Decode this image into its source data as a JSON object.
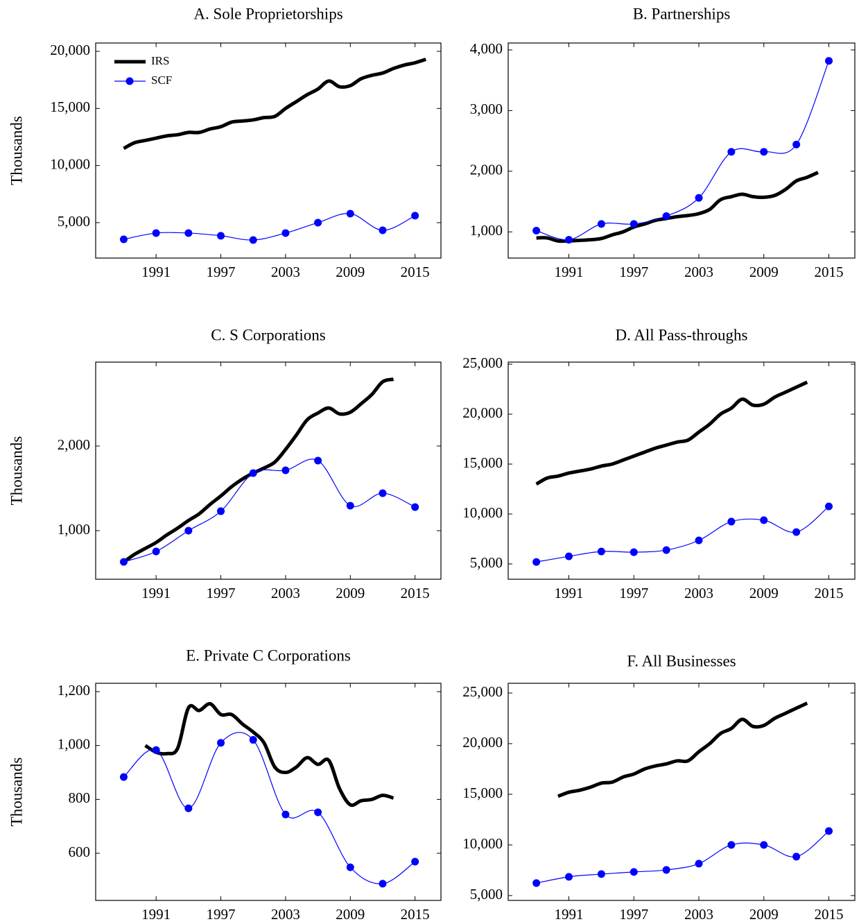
{
  "chart_data": [
    {
      "type": "line",
      "title": "A. Sole Proprietorships",
      "ylabel": "Thousands",
      "legend": "upper left",
      "xlim": [
        1985.4,
        2017.4
      ],
      "ylim": [
        1900,
        20730
      ],
      "xticks": [
        1991,
        1997,
        2003,
        2009,
        2015
      ],
      "yticks": [
        {
          "value": 5000,
          "label": "5,000"
        },
        {
          "value": 10000,
          "label": "10,000"
        },
        {
          "value": 15000,
          "label": "15,000"
        },
        {
          "value": 20000,
          "label": "20,000"
        }
      ],
      "series": [
        {
          "name": "IRS",
          "color": "#000000",
          "marker": false,
          "x": [
            1988,
            1989,
            1990,
            1991,
            1992,
            1993,
            1994,
            1995,
            1996,
            1997,
            1998,
            1999,
            2000,
            2001,
            2002,
            2003,
            2004,
            2005,
            2006,
            2007,
            2008,
            2009,
            2010,
            2011,
            2012,
            2013,
            2014,
            2015,
            2016
          ],
          "values": [
            11500,
            12000,
            12200,
            12400,
            12600,
            12700,
            12900,
            12900,
            13200,
            13400,
            13800,
            13900,
            14000,
            14200,
            14300,
            15000,
            15600,
            16200,
            16700,
            17400,
            16900,
            17000,
            17600,
            17900,
            18100,
            18500,
            18800,
            19000,
            19300
          ]
        },
        {
          "name": "SCF",
          "color": "#0000ff",
          "marker": true,
          "x": [
            1988,
            1991,
            1994,
            1997,
            2000,
            2003,
            2006,
            2009,
            2012,
            2015
          ],
          "values": [
            3540,
            4090,
            4090,
            3850,
            3480,
            4090,
            5000,
            5790,
            4330,
            5610
          ]
        }
      ]
    },
    {
      "type": "line",
      "title": "B. Partnerships",
      "xlim": [
        1985.4,
        2017.4
      ],
      "ylim": [
        568,
        4114
      ],
      "xticks": [
        1991,
        1997,
        2003,
        2009,
        2015
      ],
      "yticks": [
        {
          "value": 1000,
          "label": "1,000"
        },
        {
          "value": 2000,
          "label": "2,000"
        },
        {
          "value": 3000,
          "label": "3,000"
        },
        {
          "value": 4000,
          "label": "4,000"
        }
      ],
      "series": [
        {
          "color": "#000000",
          "marker": false,
          "x": [
            1988,
            1989,
            1990,
            1991,
            1992,
            1993,
            1994,
            1995,
            1996,
            1997,
            1998,
            1999,
            2000,
            2001,
            2002,
            2003,
            2004,
            2005,
            2006,
            2007,
            2008,
            2009,
            2010,
            2011,
            2012,
            2013,
            2014
          ],
          "values": [
            900,
            900,
            850,
            850,
            860,
            870,
            890,
            950,
            1000,
            1080,
            1130,
            1190,
            1220,
            1250,
            1270,
            1300,
            1370,
            1530,
            1580,
            1620,
            1580,
            1570,
            1600,
            1700,
            1840,
            1900,
            1980
          ]
        },
        {
          "color": "#0000ff",
          "marker": true,
          "x": [
            1988,
            1991,
            1994,
            1997,
            2000,
            2003,
            2006,
            2009,
            2012,
            2015
          ],
          "values": [
            1020,
            870,
            1130,
            1130,
            1260,
            1560,
            2320,
            2320,
            2440,
            3820
          ]
        }
      ]
    },
    {
      "type": "line",
      "title": "C. S Corporations",
      "ylabel": "Thousands",
      "xlim": [
        1985.4,
        2017.4
      ],
      "ylim": [
        426,
        2992
      ],
      "xticks": [
        1991,
        1997,
        2003,
        2009,
        2015
      ],
      "yticks": [
        {
          "value": 1000,
          "label": "1,000"
        },
        {
          "value": 2000,
          "label": "2,000"
        }
      ],
      "series": [
        {
          "color": "#000000",
          "marker": false,
          "x": [
            1988,
            1989,
            1990,
            1991,
            1992,
            1993,
            1994,
            1995,
            1996,
            1997,
            1998,
            1999,
            2000,
            2001,
            2002,
            2003,
            2004,
            2005,
            2006,
            2007,
            2008,
            2009,
            2010,
            2011,
            2012,
            2013
          ],
          "values": [
            630,
            720,
            790,
            860,
            950,
            1030,
            1120,
            1200,
            1310,
            1410,
            1520,
            1610,
            1680,
            1740,
            1810,
            1960,
            2130,
            2310,
            2390,
            2450,
            2380,
            2400,
            2500,
            2610,
            2760,
            2790
          ]
        },
        {
          "color": "#0000ff",
          "marker": true,
          "x": [
            1988,
            1991,
            1994,
            1997,
            2000,
            2003,
            2006,
            2009,
            2012,
            2015
          ],
          "values": [
            631,
            754,
            1000,
            1230,
            1680,
            1713,
            1828,
            1295,
            1443,
            1279
          ]
        }
      ]
    },
    {
      "type": "line",
      "title": "D. All Pass-throughs",
      "xlim": [
        1985.4,
        2017.4
      ],
      "ylim": [
        3470,
        25210
      ],
      "xticks": [
        1991,
        1997,
        2003,
        2009,
        2015
      ],
      "yticks": [
        {
          "value": 5000,
          "label": "5,000"
        },
        {
          "value": 10000,
          "label": "10,000"
        },
        {
          "value": 15000,
          "label": "15,000"
        },
        {
          "value": 20000,
          "label": "20,000"
        },
        {
          "value": 25000,
          "label": "25,000"
        }
      ],
      "series": [
        {
          "color": "#000000",
          "marker": false,
          "x": [
            1988,
            1989,
            1990,
            1991,
            1992,
            1993,
            1994,
            1995,
            1996,
            1997,
            1998,
            1999,
            2000,
            2001,
            2002,
            2003,
            2004,
            2005,
            2006,
            2007,
            2008,
            2009,
            2010,
            2011,
            2012,
            2013
          ],
          "values": [
            13000,
            13600,
            13800,
            14100,
            14300,
            14500,
            14800,
            15000,
            15400,
            15800,
            16200,
            16600,
            16900,
            17200,
            17400,
            18200,
            19000,
            20000,
            20600,
            21500,
            20900,
            21000,
            21700,
            22200,
            22700,
            23200
          ]
        },
        {
          "color": "#0000ff",
          "marker": true,
          "x": [
            1988,
            1991,
            1994,
            1997,
            2000,
            2003,
            2006,
            2009,
            2012,
            2015
          ],
          "values": [
            5200,
            5760,
            6250,
            6180,
            6390,
            7360,
            9240,
            9380,
            8190,
            10760
          ]
        }
      ]
    },
    {
      "type": "line",
      "title": "E. Private C Corporations",
      "ylabel": "Thousands",
      "xlim": [
        1985.4,
        2017.4
      ],
      "ylim": [
        425,
        1231
      ],
      "xticks": [
        1991,
        1997,
        2003,
        2009,
        2015
      ],
      "yticks": [
        600,
        800,
        {
          "value": 1000,
          "label": "1,000"
        },
        {
          "value": 1200,
          "label": "1,200"
        }
      ],
      "series": [
        {
          "color": "#000000",
          "marker": false,
          "x": [
            1990,
            1991,
            1992,
            1993,
            1994,
            1995,
            1996,
            1997,
            1998,
            1999,
            2000,
            2001,
            2002,
            2003,
            2004,
            2005,
            2006,
            2007,
            2008,
            2009,
            2010,
            2011,
            2012,
            2013
          ],
          "values": [
            1000,
            975,
            970,
            990,
            1140,
            1130,
            1155,
            1115,
            1115,
            1080,
            1050,
            1010,
            920,
            900,
            920,
            955,
            930,
            945,
            840,
            780,
            795,
            800,
            815,
            805
          ]
        },
        {
          "color": "#0000ff",
          "marker": true,
          "x": [
            1988,
            1991,
            1994,
            1997,
            2000,
            2003,
            2006,
            2009,
            2012,
            2015
          ],
          "values": [
            883,
            983,
            767,
            1010,
            1021,
            744,
            752,
            548,
            487,
            569
          ]
        }
      ]
    },
    {
      "type": "line",
      "title": "F. All Businesses",
      "xlim": [
        1985.4,
        2017.4
      ],
      "ylim": [
        4520,
        25960
      ],
      "xticks": [
        1991,
        1997,
        2003,
        2009,
        2015
      ],
      "yticks": [
        {
          "value": 5000,
          "label": "5,000"
        },
        {
          "value": 10000,
          "label": "10,000"
        },
        {
          "value": 15000,
          "label": "15,000"
        },
        {
          "value": 20000,
          "label": "20,000"
        },
        {
          "value": 25000,
          "label": "25,000"
        }
      ],
      "series": [
        {
          "color": "#000000",
          "marker": false,
          "x": [
            1990,
            1991,
            1992,
            1993,
            1994,
            1995,
            1996,
            1997,
            1998,
            1999,
            2000,
            2001,
            2002,
            2003,
            2004,
            2005,
            2006,
            2007,
            2008,
            2009,
            2010,
            2011,
            2012,
            2013
          ],
          "values": [
            14800,
            15200,
            15400,
            15700,
            16100,
            16200,
            16700,
            17000,
            17500,
            17800,
            18000,
            18300,
            18300,
            19200,
            20000,
            21000,
            21500,
            22400,
            21700,
            21800,
            22500,
            23000,
            23500,
            24000
          ]
        },
        {
          "color": "#0000ff",
          "marker": true,
          "x": [
            1988,
            1991,
            1994,
            1997,
            2000,
            2003,
            2006,
            2009,
            2012,
            2015
          ],
          "values": [
            6230,
            6850,
            7120,
            7330,
            7530,
            8150,
            10000,
            10000,
            8840,
            11370
          ]
        }
      ]
    }
  ]
}
